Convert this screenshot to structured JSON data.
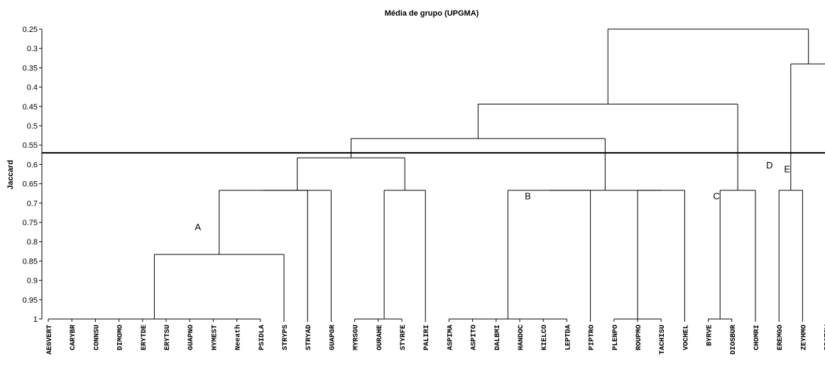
{
  "chart_data": {
    "type": "dendrogram",
    "title": "Média de grupo (UPGMA)",
    "ylabel": "Jaccard",
    "ylim": [
      0.25,
      1.0
    ],
    "y_reversed": true,
    "y_ticks": [
      "0.25",
      "0.3",
      "0.35",
      "0.4",
      "0.45",
      "0.5",
      "0.55",
      "0.6",
      "0.65",
      "0.7",
      "0.75",
      "0.8",
      "0.85",
      "0.9",
      "0.95",
      "1"
    ],
    "leaves": [
      "AEGVERT",
      "CARYBR",
      "CONNSU",
      "DIMOMO",
      "ERYTDE",
      "ERYTSU",
      "GUAPNO",
      "HYMEST",
      "Neeath",
      "PSIDLA",
      "STRYPS",
      "STRYAD",
      "GUAPGR",
      "MYRSGU",
      "OURAHE",
      "STYRFE",
      "PALIRI",
      "ASPIMA",
      "ASPITO",
      "DALBMI",
      "HANDOC",
      "KIELCO",
      "LEPTDA",
      "PIPTRO",
      "PLENPO",
      "ROUPMO",
      "TACHISU",
      "VOCHEL",
      "BYRVE",
      "DIOSBUR",
      "CHOMRI",
      "EREMGO",
      "ZEYHMO",
      "PROTSW"
    ],
    "merges": [
      {
        "id": "n1",
        "children": [
          "AEGVERT",
          "CARYBR",
          "CONNSU",
          "DIMOMO",
          "ERYTDE",
          "ERYTSU",
          "GUAPNO",
          "HYMEST",
          "Neeath",
          "PSIDLA"
        ],
        "height": 1.0
      },
      {
        "id": "n2",
        "children": [
          "n1",
          "STRYPS"
        ],
        "height": 0.833
      },
      {
        "id": "n3",
        "children": [
          "n2",
          "STRYAD"
        ],
        "height": 0.667
      },
      {
        "id": "n4",
        "children": [
          "n3",
          "GUAPGR"
        ],
        "height": 0.667
      },
      {
        "id": "n5",
        "children": [
          "MYRSGU",
          "OURAHE"
        ],
        "height": 1.0
      },
      {
        "id": "n6",
        "children": [
          "n5",
          "STYRFE"
        ],
        "height": 1.0
      },
      {
        "id": "n7",
        "children": [
          "n6",
          "PALIRI"
        ],
        "height": 0.667
      },
      {
        "id": "n8",
        "children": [
          "n4",
          "n7"
        ],
        "height": 0.583
      },
      {
        "id": "n9",
        "children": [
          "ASPIMA",
          "ASPITO",
          "DALBMI",
          "HANDOC",
          "KIELCO",
          "LEPTDA"
        ],
        "height": 1.0
      },
      {
        "id": "n10",
        "children": [
          "n9",
          "PIPTRO"
        ],
        "height": 0.667
      },
      {
        "id": "n11",
        "children": [
          "PLENPO",
          "ROUPMO",
          "TACHISU"
        ],
        "height": 1.0
      },
      {
        "id": "n12",
        "children": [
          "n11",
          "VOCHEL"
        ],
        "height": 0.667
      },
      {
        "id": "n13",
        "children": [
          "n10",
          "n12"
        ],
        "height": 0.667
      },
      {
        "id": "n14",
        "children": [
          "n8",
          "n13"
        ],
        "height": 0.533
      },
      {
        "id": "n15",
        "children": [
          "BYRVE",
          "DIOSBUR"
        ],
        "height": 1.0
      },
      {
        "id": "n16",
        "children": [
          "n15",
          "CHOMRI"
        ],
        "height": 0.667
      },
      {
        "id": "n17",
        "children": [
          "n14",
          "n16"
        ],
        "height": 0.444
      },
      {
        "id": "n18",
        "children": [
          "EREMGO",
          "ZEYHMO"
        ],
        "height": 0.667
      },
      {
        "id": "n19",
        "children": [
          "n18",
          "PROTSW"
        ],
        "height": 0.34
      },
      {
        "id": "n20",
        "children": [
          "n17",
          "n19"
        ],
        "height": 0.25
      }
    ],
    "cut_line": 0.57,
    "annotations": [
      {
        "text": "A",
        "near": "n2",
        "level": 0.77
      },
      {
        "text": "B",
        "near": "n10",
        "level": 0.69
      },
      {
        "text": "C",
        "near": "n16",
        "level": 0.69
      },
      {
        "text": "D",
        "near": "n18",
        "level": 0.61
      },
      {
        "text": "E",
        "near": "n19",
        "level": 0.62
      }
    ]
  }
}
